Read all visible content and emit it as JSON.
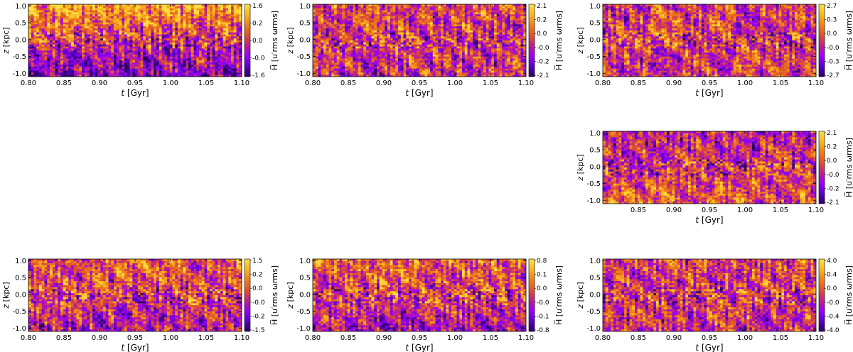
{
  "figure": {
    "xlabel_var": "t",
    "xlabel_unit": " [Gyr]",
    "ylabel_var": "z",
    "ylabel_unit": " [kpc]",
    "cbar_label": "H̅ [u′rms ωrms]"
  },
  "colormap": {
    "name": "plasma-like",
    "stops": [
      "#2a0060",
      "#5a00c8",
      "#9a00ff",
      "#c0208a",
      "#e0522a",
      "#f0801a",
      "#f8b820",
      "#ffe040"
    ]
  },
  "chart_data": [
    {
      "type": "heatmap",
      "panel": "top-left",
      "x_range": [
        0.8,
        1.1
      ],
      "y_range": [
        -1.1,
        1.05
      ],
      "x_ticks": [
        "0.80",
        "0.85",
        "0.90",
        "0.95",
        "1.00",
        "1.05",
        "1.10"
      ],
      "y_ticks": [
        "-1.0",
        "-0.5",
        "0.0",
        "0.5",
        "1.0"
      ],
      "cbar_ticks": [
        "1.6",
        "0.2",
        "0.0",
        "-0.0",
        "-1.6"
      ],
      "bias": 0.3
    },
    {
      "type": "heatmap",
      "panel": "top-middle",
      "x_range": [
        0.8,
        1.1
      ],
      "y_range": [
        -1.1,
        1.05
      ],
      "x_ticks": [
        "0.80",
        "0.85",
        "0.90",
        "0.95",
        "1.00",
        "1.05",
        "1.10"
      ],
      "y_ticks": [
        "-1.0",
        "-0.5",
        "0.0",
        "0.5",
        "1.0"
      ],
      "cbar_ticks": [
        "2.1",
        "0.2",
        "0.0",
        "-0.0",
        "-0.2",
        "-2.1"
      ],
      "bias": 0.05
    },
    {
      "type": "heatmap",
      "panel": "top-right",
      "x_range": [
        0.8,
        1.1
      ],
      "y_range": [
        -1.1,
        1.05
      ],
      "x_ticks": [
        "0.80",
        "0.85",
        "0.90",
        "0.95",
        "1.00",
        "1.05",
        "1.10"
      ],
      "y_ticks": [
        "-1.0",
        "-0.5",
        "0.0",
        "0.5",
        "1.0"
      ],
      "cbar_ticks": [
        "2.7",
        "0.3",
        "0.0",
        "-0.0",
        "-0.3",
        "-2.7"
      ],
      "bias": 0.0
    },
    {
      "type": "heatmap",
      "panel": "middle-right",
      "x_range": [
        0.8,
        1.1
      ],
      "y_range": [
        -1.1,
        1.05
      ],
      "x_ticks": [
        "0.85",
        "0.90",
        "0.95",
        "1.00",
        "1.05",
        "1.10"
      ],
      "y_ticks": [
        "-1.0",
        "-0.5",
        "0.0",
        "0.5",
        "1.0"
      ],
      "cbar_ticks": [
        "2.1",
        "0.2",
        "0.0",
        "-0.0",
        "-0.2",
        "-2.1"
      ],
      "bias": -0.1
    },
    {
      "type": "heatmap",
      "panel": "bottom-left",
      "x_range": [
        0.8,
        1.1
      ],
      "y_range": [
        -1.1,
        1.05
      ],
      "x_ticks": [
        "0.80",
        "0.85",
        "0.90",
        "0.95",
        "1.00",
        "1.05",
        "1.10"
      ],
      "y_ticks": [
        "-1.0",
        "-0.5",
        "0.0",
        "0.5",
        "1.0"
      ],
      "cbar_ticks": [
        "1.5",
        "0.2",
        "0.0",
        "-0.0",
        "-0.2",
        "-1.5"
      ],
      "bias": 0.1
    },
    {
      "type": "heatmap",
      "panel": "bottom-middle",
      "x_range": [
        0.8,
        1.1
      ],
      "y_range": [
        -1.1,
        1.05
      ],
      "x_ticks": [
        "0.80",
        "0.85",
        "0.90",
        "0.95",
        "1.00",
        "1.05",
        "1.10"
      ],
      "y_ticks": [
        "-1.0",
        "-0.5",
        "0.0",
        "0.5",
        "1.0"
      ],
      "cbar_ticks": [
        "0.8",
        "0.1",
        "0.0",
        "-0.0",
        "-0.1",
        "-0.8"
      ],
      "bias": 0.15
    },
    {
      "type": "heatmap",
      "panel": "bottom-right",
      "x_range": [
        0.8,
        1.1
      ],
      "y_range": [
        -1.1,
        1.05
      ],
      "x_ticks": [
        "0.80",
        "0.85",
        "0.90",
        "0.95",
        "1.00",
        "1.05",
        "1.10"
      ],
      "y_ticks": [
        "-1.0",
        "-0.5",
        "0.0",
        "0.5",
        "1.0"
      ],
      "cbar_ticks": [
        "4.0",
        "0.4",
        "0.0",
        "-0.0",
        "-0.4",
        "-4.0"
      ],
      "bias": 0.05
    }
  ]
}
